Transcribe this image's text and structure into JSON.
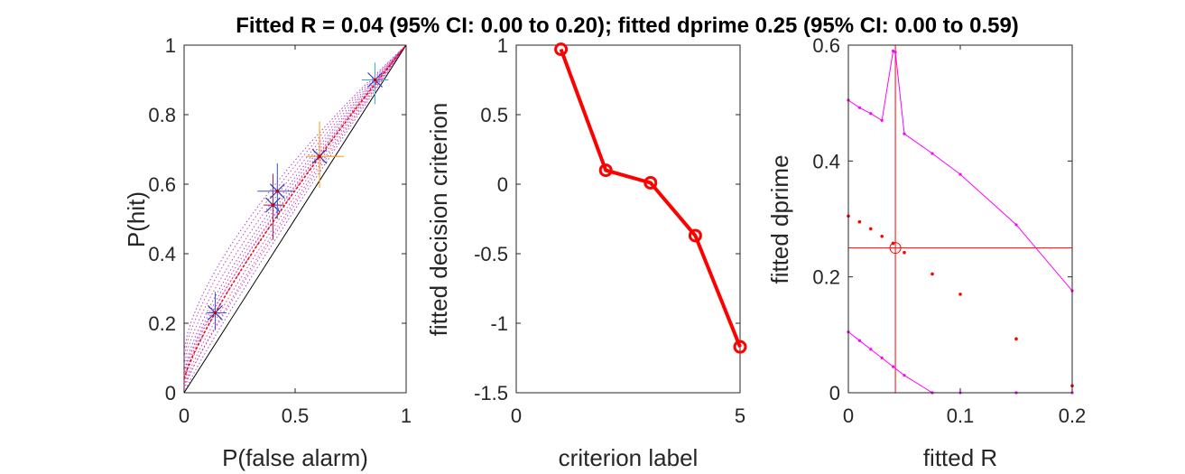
{
  "figure": {
    "title": "Fitted R = 0.04 (95% CI: 0.00 to 0.20); fitted dprime 0.25 (95% CI: 0.00 to 0.59)"
  },
  "chart_data": [
    {
      "type": "line",
      "name": "roc",
      "xlabel": "P(false alarm)",
      "ylabel": "P(hit)",
      "xlim": [
        0,
        1
      ],
      "ylim": [
        0,
        1
      ],
      "xticks": [
        0,
        0.5,
        1
      ],
      "yticks": [
        0,
        0.2,
        0.4,
        0.6,
        0.8,
        1
      ],
      "xtick_labels": [
        "0",
        "0.5",
        "1"
      ],
      "ytick_labels": [
        "0",
        "0.2",
        "0.4",
        "0.6",
        "0.8",
        "1"
      ],
      "observed_points": [
        {
          "x": 0.14,
          "y": 0.23,
          "xerr": [
            0.1,
            0.19
          ],
          "yerr": [
            0.18,
            0.29
          ],
          "color": "#3355dd"
        },
        {
          "x": 0.4,
          "y": 0.54,
          "xerr": [
            0.36,
            0.45
          ],
          "yerr": [
            0.44,
            0.63
          ],
          "color": "#8b2252"
        },
        {
          "x": 0.42,
          "y": 0.58,
          "xerr": [
            0.33,
            0.5
          ],
          "yerr": [
            0.5,
            0.66
          ],
          "color": "#3355dd"
        },
        {
          "x": 0.61,
          "y": 0.68,
          "xerr": [
            0.55,
            0.72
          ],
          "yerr": [
            0.59,
            0.78
          ],
          "color": "#ff9900"
        },
        {
          "x": 0.86,
          "y": 0.9,
          "xerr": [
            0.8,
            0.92
          ],
          "yerr": [
            0.83,
            0.95
          ],
          "color": "#33aadd"
        }
      ],
      "fitted_curve": {
        "R": 0.04,
        "dprime": 0.25,
        "color": "#ff0000"
      },
      "bootstrap_curves": {
        "color": "#cc33aa"
      },
      "chance_line": {
        "x": [
          0,
          1
        ],
        "y": [
          0,
          1
        ],
        "color": "#000000"
      }
    },
    {
      "type": "line",
      "name": "criteria",
      "xlabel": "criterion label",
      "ylabel": "fitted decision criterion",
      "xlim": [
        0,
        5
      ],
      "ylim": [
        -1.5,
        1
      ],
      "xticks": [
        0,
        5
      ],
      "yticks": [
        -1.5,
        -1,
        -0.5,
        0,
        0.5,
        1
      ],
      "xtick_labels": [
        "0",
        "5"
      ],
      "ytick_labels": [
        "-1.5",
        "-1",
        "-0.5",
        "0",
        "0.5",
        "1"
      ],
      "x": [
        1,
        2,
        3,
        4,
        5
      ],
      "y": [
        0.97,
        0.1,
        0.01,
        -0.37,
        -1.17
      ],
      "color": "#ff0000"
    },
    {
      "type": "scatter",
      "name": "profile",
      "xlabel": "fitted R",
      "ylabel": "fitted dprime",
      "xlim": [
        0,
        0.2
      ],
      "ylim": [
        0,
        0.6
      ],
      "xticks": [
        0,
        0.1,
        0.2
      ],
      "yticks": [
        0,
        0.2,
        0.4,
        0.6
      ],
      "xtick_labels": [
        "0",
        "0.1",
        "0.2"
      ],
      "ytick_labels": [
        "0",
        "0.2",
        "0.4",
        "0.6"
      ],
      "upper_bound": {
        "x": [
          0,
          0.01,
          0.02,
          0.03,
          0.04,
          0.042,
          0.05,
          0.075,
          0.1,
          0.15,
          0.2
        ],
        "y": [
          0.505,
          0.492,
          0.482,
          0.47,
          0.59,
          0.588,
          0.447,
          0.413,
          0.377,
          0.29,
          0.176
        ],
        "color": "#ff00ff"
      },
      "lower_bound": {
        "x": [
          0,
          0.01,
          0.02,
          0.03,
          0.04,
          0.05,
          0.075,
          0.1,
          0.15,
          0.2
        ],
        "y": [
          0.105,
          0.09,
          0.075,
          0.06,
          0.045,
          0.03,
          0,
          0,
          0,
          0
        ],
        "color": "#ff00ff"
      },
      "likelihood_points": {
        "x": [
          0,
          0.01,
          0.02,
          0.03,
          0.04,
          0.05,
          0.075,
          0.1,
          0.15,
          0.2
        ],
        "y": [
          0.305,
          0.295,
          0.283,
          0.27,
          0.258,
          0.242,
          0.205,
          0.17,
          0.093,
          0.012
        ],
        "color": "#ff0000"
      },
      "best_fit": {
        "x": 0.042,
        "y": 0.25,
        "color": "#ff0000"
      }
    }
  ]
}
